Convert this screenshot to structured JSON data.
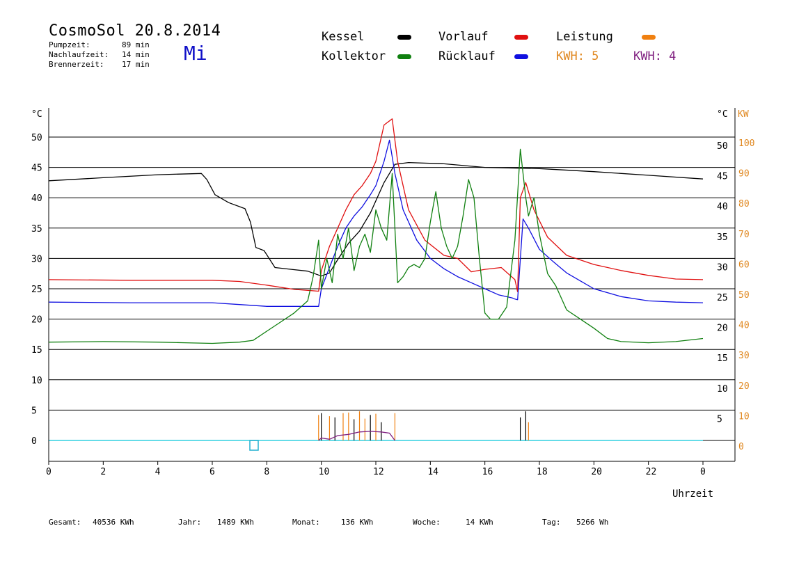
{
  "header": {
    "title": "CosmoSol 20.8.2014",
    "day": "Mi",
    "stats": [
      {
        "label": "Pumpzeit:",
        "value": "89 min"
      },
      {
        "label": "Nachlaufzeit:",
        "value": "14 min"
      },
      {
        "label": "Brennerzeit:",
        "value": "17 min"
      }
    ]
  },
  "legend": {
    "kessel": {
      "label": "Kessel",
      "color": "#000000"
    },
    "vorlauf": {
      "label": "Vorlauf",
      "color": "#e01010"
    },
    "leistung": {
      "label": "Leistung",
      "color": "#f08010"
    },
    "kollektor": {
      "label": "Kollektor",
      "color": "#108010"
    },
    "ruecklauf": {
      "label": "Rücklauf",
      "color": "#1010e0"
    },
    "kwh1": {
      "label": "KWH: 5",
      "color": "#e08820"
    },
    "kwh2": {
      "label": "KWH: 4",
      "color": "#802080"
    }
  },
  "footer": [
    {
      "label": "Gesamt:",
      "value": "40536 KWh"
    },
    {
      "label": "Jahr:",
      "value": "1489 KWh"
    },
    {
      "label": "Monat:",
      "value": "136 KWh"
    },
    {
      "label": "Woche:",
      "value": "14 KWh"
    },
    {
      "label": "Tag:",
      "value": "5266 Wh"
    }
  ],
  "chart_data": {
    "type": "line",
    "xlabel": "Uhrzeit",
    "ylabel_left": "°C",
    "ylabel_right": "°C",
    "ylabel_right2": "KW",
    "xlim": [
      0,
      24
    ],
    "ylim": [
      0,
      50
    ],
    "ylim_kw": [
      0,
      100
    ],
    "x_ticks": [
      "0",
      "2",
      "4",
      "6",
      "8",
      "10",
      "12",
      "14",
      "16",
      "18",
      "20",
      "22",
      "0"
    ],
    "y_ticks": [
      0,
      5,
      10,
      15,
      20,
      25,
      30,
      35,
      40,
      45,
      50
    ],
    "kw_ticks": [
      0,
      10,
      20,
      30,
      40,
      50,
      60,
      70,
      80,
      90,
      100
    ],
    "grid": true,
    "series": [
      {
        "key": "kessel",
        "color": "#000000",
        "x": [
          0,
          2,
          4,
          5.6,
          5.8,
          6.1,
          6.6,
          7.2,
          7.4,
          7.6,
          7.9,
          8.3,
          8.9,
          9.5,
          10.0,
          10.3,
          10.6,
          11.0,
          11.4,
          11.8,
          12.3,
          12.7,
          13.2,
          14.5,
          16.0,
          18.0,
          20.0,
          22.0,
          24.0
        ],
        "y": [
          42.8,
          43.3,
          43.8,
          44.0,
          43.0,
          40.5,
          39.2,
          38.2,
          36.0,
          31.8,
          31.3,
          28.5,
          28.2,
          27.9,
          27.1,
          27.6,
          29.8,
          32.5,
          34.5,
          37.5,
          42.5,
          45.5,
          45.8,
          45.6,
          45.0,
          44.8,
          44.3,
          43.7,
          43.1
        ]
      },
      {
        "key": "vorlauf",
        "color": "#e01010",
        "x": [
          0,
          3,
          6,
          7,
          8,
          9,
          9.9,
          10.0,
          10.3,
          10.6,
          10.9,
          11.2,
          11.5,
          11.8,
          12.0,
          12.3,
          12.6,
          12.8,
          13.2,
          13.8,
          14.5,
          15.0,
          15.5,
          16.0,
          16.6,
          17.1,
          17.2,
          17.3,
          17.5,
          17.8,
          18.3,
          19.0,
          20.0,
          21.0,
          22.0,
          23.0,
          24.0
        ],
        "y": [
          26.5,
          26.4,
          26.4,
          26.2,
          25.6,
          24.9,
          24.6,
          28.0,
          32.0,
          35.0,
          38.0,
          40.5,
          42.0,
          44.0,
          46.0,
          52.0,
          53.0,
          46.0,
          38.0,
          33.0,
          30.5,
          30.0,
          27.8,
          28.2,
          28.5,
          26.5,
          24.5,
          40.0,
          42.5,
          38.0,
          33.5,
          30.5,
          29.0,
          28.0,
          27.2,
          26.6,
          26.5
        ]
      },
      {
        "key": "ruecklauf",
        "color": "#1010e0",
        "x": [
          0,
          3,
          6,
          7,
          8,
          9,
          9.9,
          10.0,
          10.3,
          10.6,
          10.9,
          11.2,
          11.5,
          11.8,
          12.0,
          12.3,
          12.5,
          12.7,
          13.0,
          13.5,
          14.0,
          14.5,
          15.0,
          15.5,
          16.0,
          16.5,
          17.0,
          17.1,
          17.2,
          17.4,
          17.6,
          18.0,
          18.5,
          19.0,
          19.5,
          20.0,
          21.0,
          22.0,
          23.0,
          24.0
        ],
        "y": [
          22.8,
          22.7,
          22.7,
          22.4,
          22.1,
          22.1,
          22.1,
          25.0,
          28.5,
          32.0,
          35.0,
          37.0,
          38.5,
          40.5,
          42.0,
          46.0,
          49.5,
          44.0,
          38.0,
          33.0,
          30.0,
          28.3,
          27.0,
          26.0,
          25.0,
          24.0,
          23.5,
          23.3,
          23.2,
          36.5,
          35.0,
          31.5,
          29.5,
          27.6,
          26.3,
          25.0,
          23.7,
          23.0,
          22.8,
          22.7
        ]
      },
      {
        "key": "kollektor",
        "color": "#108010",
        "x": [
          0,
          2,
          4,
          5,
          6,
          7,
          7.5,
          8,
          8.5,
          9,
          9.5,
          9.7,
          9.9,
          10.0,
          10.2,
          10.4,
          10.6,
          10.8,
          11.0,
          11.2,
          11.4,
          11.6,
          11.8,
          12.0,
          12.2,
          12.4,
          12.6,
          12.8,
          13.0,
          13.2,
          13.4,
          13.6,
          13.8,
          14.0,
          14.2,
          14.4,
          14.6,
          14.8,
          15.0,
          15.2,
          15.4,
          15.6,
          15.8,
          16.0,
          16.2,
          16.5,
          16.8,
          17.1,
          17.3,
          17.5,
          17.6,
          17.8,
          18.0,
          18.3,
          18.6,
          19.0,
          19.5,
          20.0,
          20.5,
          21.0,
          22.0,
          23.0,
          24.0
        ],
        "y": [
          16.2,
          16.3,
          16.2,
          16.1,
          16.0,
          16.2,
          16.5,
          18.0,
          19.5,
          21.0,
          23.0,
          27.0,
          33.0,
          25.0,
          30.0,
          26.0,
          34.0,
          30.0,
          35.0,
          28.0,
          32.0,
          34.0,
          31.0,
          38.0,
          35.0,
          33.0,
          44.0,
          26.0,
          27.0,
          28.5,
          29.0,
          28.5,
          30.0,
          36.0,
          41.0,
          35.0,
          32.0,
          30.0,
          32.0,
          37.0,
          43.0,
          40.0,
          30.0,
          21.0,
          20.0,
          20.0,
          22.0,
          33.0,
          48.0,
          40.0,
          37.0,
          40.0,
          34.0,
          27.5,
          25.5,
          21.5,
          20.0,
          18.5,
          16.8,
          16.3,
          16.1,
          16.3,
          16.8
        ]
      }
    ]
  }
}
